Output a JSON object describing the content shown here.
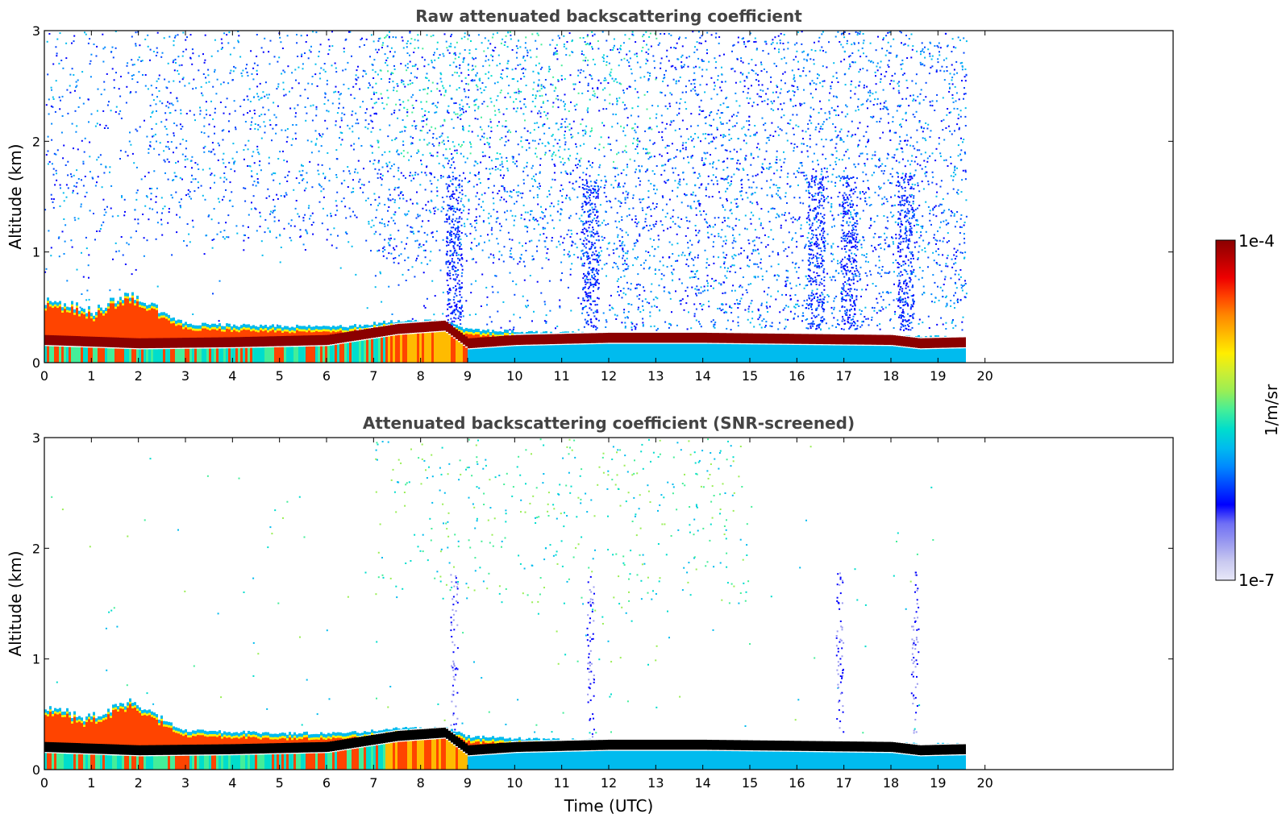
{
  "chart_data": [
    {
      "type": "heatmap",
      "title": "Raw attenuated backscattering coefficient",
      "xlabel": "",
      "ylabel": "Altitude (km)",
      "xlim": [
        0,
        24
      ],
      "ylim": [
        0,
        3
      ],
      "xticks": [
        "0",
        "1",
        "2",
        "3",
        "4",
        "5",
        "6",
        "7",
        "8",
        "9",
        "10",
        "11",
        "12",
        "13",
        "14",
        "15",
        "16",
        "17",
        "18",
        "19",
        "20"
      ],
      "yticks": [
        "0",
        "1",
        "2",
        "3"
      ],
      "data_end_time": 19.6,
      "noise_columns_hours": [
        8.7,
        11.6,
        16.4,
        17.1,
        18.3
      ],
      "boundary_layer_top_km": [
        [
          0,
          0.55
        ],
        [
          1,
          0.45
        ],
        [
          1.7,
          0.6
        ],
        [
          2.5,
          0.45
        ],
        [
          3,
          0.35
        ],
        [
          5,
          0.33
        ],
        [
          6.5,
          0.33
        ],
        [
          7.5,
          0.38
        ],
        [
          8.5,
          0.38
        ],
        [
          9,
          0.3
        ],
        [
          10,
          0.28
        ],
        [
          12,
          0.26
        ],
        [
          14,
          0.26
        ],
        [
          16,
          0.24
        ],
        [
          19.6,
          0.23
        ]
      ],
      "aerosol_layer_km": [
        [
          0,
          0.2
        ],
        [
          2,
          0.17
        ],
        [
          4,
          0.18
        ],
        [
          6,
          0.2
        ],
        [
          7.5,
          0.3
        ],
        [
          8.5,
          0.33
        ],
        [
          9,
          0.17
        ],
        [
          10,
          0.2
        ],
        [
          12,
          0.22
        ],
        [
          14,
          0.22
        ],
        [
          16,
          0.21
        ],
        [
          18,
          0.2
        ],
        [
          18.6,
          0.17
        ],
        [
          19.6,
          0.18
        ]
      ]
    },
    {
      "type": "heatmap",
      "title": "Attenuated backscattering coefficient (SNR-screened)",
      "xlabel": "Time (UTC)",
      "ylabel": "Altitude (km)",
      "xlim": [
        0,
        24
      ],
      "ylim": [
        0,
        3
      ],
      "xticks": [
        "0",
        "1",
        "2",
        "3",
        "4",
        "5",
        "6",
        "7",
        "8",
        "9",
        "10",
        "11",
        "12",
        "13",
        "14",
        "15",
        "16",
        "17",
        "18",
        "19",
        "20"
      ],
      "yticks": [
        "0",
        "1",
        "2",
        "3"
      ],
      "data_end_time": 19.6,
      "noise_columns_hours": [
        8.7,
        11.6,
        16.9,
        18.5
      ],
      "boundary_layer_top_km": [
        [
          0,
          0.55
        ],
        [
          1,
          0.45
        ],
        [
          1.7,
          0.6
        ],
        [
          2.5,
          0.45
        ],
        [
          3,
          0.35
        ],
        [
          5,
          0.33
        ],
        [
          6.5,
          0.33
        ],
        [
          7.5,
          0.38
        ],
        [
          8.5,
          0.38
        ],
        [
          9,
          0.3
        ],
        [
          10,
          0.28
        ],
        [
          12,
          0.26
        ],
        [
          14,
          0.26
        ],
        [
          16,
          0.24
        ],
        [
          19.6,
          0.23
        ]
      ],
      "aerosol_layer_km": [
        [
          0,
          0.2
        ],
        [
          2,
          0.17
        ],
        [
          4,
          0.18
        ],
        [
          6,
          0.2
        ],
        [
          7.5,
          0.3
        ],
        [
          8.5,
          0.33
        ],
        [
          9,
          0.17
        ],
        [
          10,
          0.2
        ],
        [
          12,
          0.22
        ],
        [
          14,
          0.22
        ],
        [
          16,
          0.21
        ],
        [
          18,
          0.2
        ],
        [
          18.6,
          0.17
        ],
        [
          19.6,
          0.18
        ]
      ]
    }
  ],
  "colorbar": {
    "label": "1/m/sr",
    "max_label": "1e-4",
    "min_label": "1e-7",
    "colors": [
      "#e8e8f8",
      "#c8c8f0",
      "#9a9af0",
      "#6f6ff5",
      "#0000ff",
      "#0044ff",
      "#0088ff",
      "#00bbee",
      "#00ddcc",
      "#44ee99",
      "#99ee55",
      "#ccee33",
      "#ffee00",
      "#ffbb00",
      "#ff8800",
      "#ff4400",
      "#ee0000",
      "#bb0000",
      "#8b0000"
    ]
  }
}
